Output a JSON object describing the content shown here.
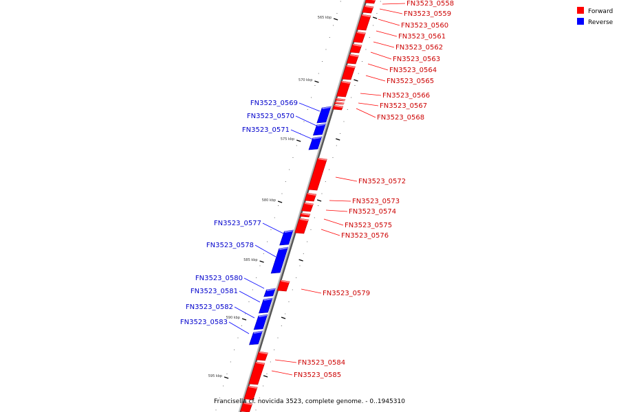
{
  "title": "Francisella cf. novicida 3523, complete genome. - 0..1945310",
  "colors": {
    "forward": "#ff0000",
    "reverse": "#0000ff",
    "axis": "#888888"
  },
  "legend": [
    {
      "label": "Forward",
      "color": "#ff0000"
    },
    {
      "label": "Reverse",
      "color": "#0000ff"
    }
  ],
  "ticks": [
    "565 kbp",
    "570 kbp",
    "575 kbp",
    "580 kbp",
    "585 kbp",
    "590 kbp",
    "595 kbp"
  ],
  "genes": [
    {
      "name": "FN3523_0558",
      "strand": "forward"
    },
    {
      "name": "FN3523_0559",
      "strand": "forward"
    },
    {
      "name": "FN3523_0560",
      "strand": "forward"
    },
    {
      "name": "FN3523_0561",
      "strand": "forward"
    },
    {
      "name": "FN3523_0562",
      "strand": "forward"
    },
    {
      "name": "FN3523_0563",
      "strand": "forward"
    },
    {
      "name": "FN3523_0564",
      "strand": "forward"
    },
    {
      "name": "FN3523_0565",
      "strand": "forward"
    },
    {
      "name": "FN3523_0566",
      "strand": "forward"
    },
    {
      "name": "FN3523_0567",
      "strand": "forward"
    },
    {
      "name": "FN3523_0568",
      "strand": "forward"
    },
    {
      "name": "FN3523_0569",
      "strand": "reverse"
    },
    {
      "name": "FN3523_0570",
      "strand": "reverse"
    },
    {
      "name": "FN3523_0571",
      "strand": "reverse"
    },
    {
      "name": "FN3523_0572",
      "strand": "forward"
    },
    {
      "name": "FN3523_0573",
      "strand": "forward"
    },
    {
      "name": "FN3523_0574",
      "strand": "forward"
    },
    {
      "name": "FN3523_0575",
      "strand": "forward"
    },
    {
      "name": "FN3523_0576",
      "strand": "forward"
    },
    {
      "name": "FN3523_0577",
      "strand": "reverse"
    },
    {
      "name": "FN3523_0578",
      "strand": "reverse"
    },
    {
      "name": "FN3523_0579",
      "strand": "forward"
    },
    {
      "name": "FN3523_0580",
      "strand": "reverse"
    },
    {
      "name": "FN3523_0581",
      "strand": "reverse"
    },
    {
      "name": "FN3523_0582",
      "strand": "reverse"
    },
    {
      "name": "FN3523_0583",
      "strand": "reverse"
    },
    {
      "name": "FN3523_0584",
      "strand": "forward"
    },
    {
      "name": "FN3523_0585",
      "strand": "forward"
    }
  ]
}
